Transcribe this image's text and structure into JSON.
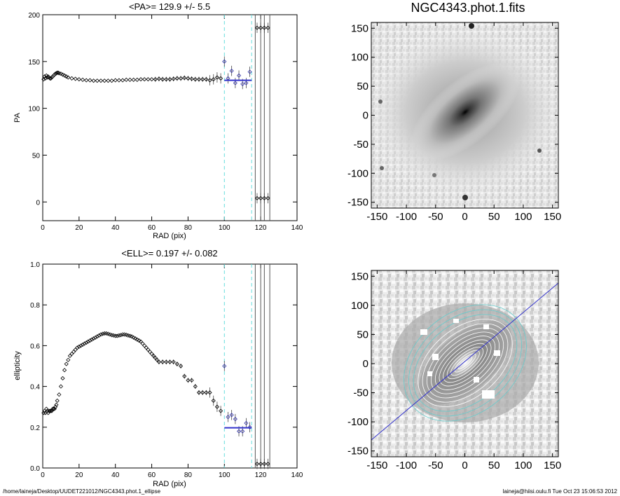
{
  "image_title": "NGC4343.phot.1.fits",
  "footer": {
    "path": "/home/laineja/Desktop/UUDET221012/NGC4343.phot.1_ellipse",
    "user_date": "laineja@hiisi.oulu.fi  Tue Oct 23 15:06:53 2012"
  },
  "colors": {
    "mean_line": "#3333cc",
    "cyan_dashed": "#66dddd",
    "axis": "#000000",
    "contour_cyan": "#66cccc"
  },
  "image_panel_axes": {
    "x_ticks": [
      "-150",
      "-100",
      "-50",
      "0",
      "50",
      "100",
      "150"
    ],
    "y_ticks": [
      "150",
      "100",
      "50",
      "0",
      "-50",
      "-100",
      "-150"
    ]
  },
  "chart_data": [
    {
      "type": "scatter",
      "title": "<PA>= 129.9 +/-   5.5",
      "xlabel": "RAD (pix)",
      "ylabel": "PA",
      "xlim": [
        0,
        140
      ],
      "ylim": [
        -20,
        200
      ],
      "xticks": [
        "0",
        "20",
        "40",
        "60",
        "80",
        "100",
        "120",
        "140"
      ],
      "yticks": [
        "200",
        "150",
        "100",
        "50",
        "0"
      ],
      "mean": 129.9,
      "mean_range": [
        100,
        115
      ],
      "vlines_dashed": [
        100,
        115
      ],
      "vlines_solid": [
        117,
        120,
        122,
        125
      ],
      "points": [
        [
          0.5,
          131
        ],
        [
          1,
          134
        ],
        [
          1.5,
          132
        ],
        [
          2,
          135
        ],
        [
          2.5,
          133
        ],
        [
          3,
          134
        ],
        [
          3.5,
          133
        ],
        [
          4,
          132
        ],
        [
          4.5,
          132
        ],
        [
          5,
          133
        ],
        [
          5.5,
          134
        ],
        [
          6,
          135
        ],
        [
          6.5,
          136
        ],
        [
          7,
          137
        ],
        [
          7.5,
          137.5
        ],
        [
          8,
          138
        ],
        [
          8.5,
          138
        ],
        [
          9,
          137.5
        ],
        [
          10,
          137
        ],
        [
          11,
          136
        ],
        [
          12,
          135
        ],
        [
          13,
          134
        ],
        [
          14,
          133
        ],
        [
          16,
          132
        ],
        [
          18,
          131.5
        ],
        [
          20,
          131
        ],
        [
          22,
          130.5
        ],
        [
          24,
          130
        ],
        [
          26,
          130
        ],
        [
          28,
          129.5
        ],
        [
          30,
          129.5
        ],
        [
          32,
          129.5
        ],
        [
          34,
          129.5
        ],
        [
          36,
          129.5
        ],
        [
          38,
          129.5
        ],
        [
          40,
          130
        ],
        [
          42,
          130
        ],
        [
          44,
          130
        ],
        [
          46,
          130.5
        ],
        [
          48,
          130.5
        ],
        [
          50,
          130.5
        ],
        [
          52,
          130.5
        ],
        [
          54,
          131
        ],
        [
          56,
          131
        ],
        [
          58,
          131
        ],
        [
          60,
          131
        ],
        [
          62,
          131
        ],
        [
          64,
          131.5
        ],
        [
          66,
          131
        ],
        [
          68,
          131
        ],
        [
          70,
          131
        ],
        [
          72,
          131.5
        ],
        [
          74,
          132
        ],
        [
          76,
          132
        ],
        [
          78,
          132.5
        ],
        [
          80,
          132
        ],
        [
          82,
          131.5
        ],
        [
          84,
          131
        ],
        [
          86,
          131
        ],
        [
          88,
          131
        ],
        [
          90,
          131
        ],
        [
          92,
          130
        ],
        [
          94,
          131
        ],
        [
          96,
          133
        ],
        [
          98,
          132
        ],
        [
          100,
          150
        ],
        [
          102,
          132
        ],
        [
          104,
          140
        ],
        [
          106,
          127
        ],
        [
          108,
          135
        ],
        [
          110,
          126
        ],
        [
          112,
          127
        ],
        [
          114,
          139
        ],
        [
          118,
          186
        ],
        [
          120,
          186
        ],
        [
          122,
          186
        ],
        [
          124,
          186
        ],
        [
          118,
          4
        ],
        [
          120,
          4
        ],
        [
          122,
          4
        ],
        [
          124,
          4
        ]
      ]
    },
    {
      "type": "scatter",
      "title": "<ELL>= 0.197 +/-  0.082",
      "xlabel": "RAD (pix)",
      "ylabel": "ellipticity",
      "xlim": [
        0,
        140
      ],
      "ylim": [
        0,
        1.0
      ],
      "xticks": [
        "0",
        "20",
        "40",
        "60",
        "80",
        "100",
        "120",
        "140"
      ],
      "yticks": [
        "1.0",
        "0.8",
        "0.6",
        "0.4",
        "0.2",
        "0.0"
      ],
      "mean": 0.197,
      "mean_range": [
        100,
        115
      ],
      "vlines_dashed": [
        100,
        115
      ],
      "vlines_solid": [
        117,
        120,
        122,
        125
      ],
      "points": [
        [
          0.5,
          0.27
        ],
        [
          1,
          0.28
        ],
        [
          1.5,
          0.27
        ],
        [
          2,
          0.29
        ],
        [
          2.5,
          0.28
        ],
        [
          3,
          0.27
        ],
        [
          3.5,
          0.28
        ],
        [
          4,
          0.28
        ],
        [
          4.5,
          0.28
        ],
        [
          5,
          0.28
        ],
        [
          5.5,
          0.29
        ],
        [
          6,
          0.29
        ],
        [
          6.5,
          0.29
        ],
        [
          7,
          0.3
        ],
        [
          7.5,
          0.31
        ],
        [
          8,
          0.33
        ],
        [
          9,
          0.36
        ],
        [
          10,
          0.4
        ],
        [
          11,
          0.44
        ],
        [
          12,
          0.48
        ],
        [
          13,
          0.51
        ],
        [
          14,
          0.53
        ],
        [
          15,
          0.55
        ],
        [
          16,
          0.56
        ],
        [
          17,
          0.57
        ],
        [
          18,
          0.58
        ],
        [
          19,
          0.59
        ],
        [
          20,
          0.595
        ],
        [
          21,
          0.6
        ],
        [
          22,
          0.605
        ],
        [
          23,
          0.61
        ],
        [
          24,
          0.615
        ],
        [
          25,
          0.62
        ],
        [
          26,
          0.625
        ],
        [
          27,
          0.63
        ],
        [
          28,
          0.635
        ],
        [
          29,
          0.64
        ],
        [
          30,
          0.645
        ],
        [
          31,
          0.65
        ],
        [
          32,
          0.655
        ],
        [
          33,
          0.658
        ],
        [
          34,
          0.66
        ],
        [
          35,
          0.66
        ],
        [
          36,
          0.658
        ],
        [
          37,
          0.655
        ],
        [
          38,
          0.652
        ],
        [
          39,
          0.65
        ],
        [
          40,
          0.648
        ],
        [
          41,
          0.648
        ],
        [
          42,
          0.65
        ],
        [
          43,
          0.652
        ],
        [
          44,
          0.655
        ],
        [
          45,
          0.655
        ],
        [
          46,
          0.653
        ],
        [
          47,
          0.65
        ],
        [
          48,
          0.648
        ],
        [
          49,
          0.645
        ],
        [
          50,
          0.64
        ],
        [
          51,
          0.635
        ],
        [
          52,
          0.63
        ],
        [
          53,
          0.625
        ],
        [
          54,
          0.62
        ],
        [
          55,
          0.61
        ],
        [
          56,
          0.6
        ],
        [
          57,
          0.59
        ],
        [
          58,
          0.58
        ],
        [
          59,
          0.57
        ],
        [
          60,
          0.56
        ],
        [
          61,
          0.55
        ],
        [
          62,
          0.54
        ],
        [
          63,
          0.53
        ],
        [
          64,
          0.52
        ],
        [
          66,
          0.52
        ],
        [
          68,
          0.52
        ],
        [
          70,
          0.52
        ],
        [
          72,
          0.52
        ],
        [
          74,
          0.51
        ],
        [
          76,
          0.5
        ],
        [
          78,
          0.45
        ],
        [
          80,
          0.43
        ],
        [
          82,
          0.43
        ],
        [
          84,
          0.4
        ],
        [
          86,
          0.37
        ],
        [
          88,
          0.37
        ],
        [
          90,
          0.37
        ],
        [
          92,
          0.37
        ],
        [
          94,
          0.33
        ],
        [
          96,
          0.3
        ],
        [
          98,
          0.28
        ],
        [
          100,
          0.5
        ],
        [
          102,
          0.25
        ],
        [
          104,
          0.26
        ],
        [
          106,
          0.24
        ],
        [
          108,
          0.18
        ],
        [
          110,
          0.18
        ],
        [
          112,
          0.22
        ],
        [
          114,
          0.2
        ],
        [
          118,
          0.02
        ],
        [
          120,
          0.02
        ],
        [
          122,
          0.02
        ],
        [
          124,
          0.02
        ]
      ]
    }
  ]
}
